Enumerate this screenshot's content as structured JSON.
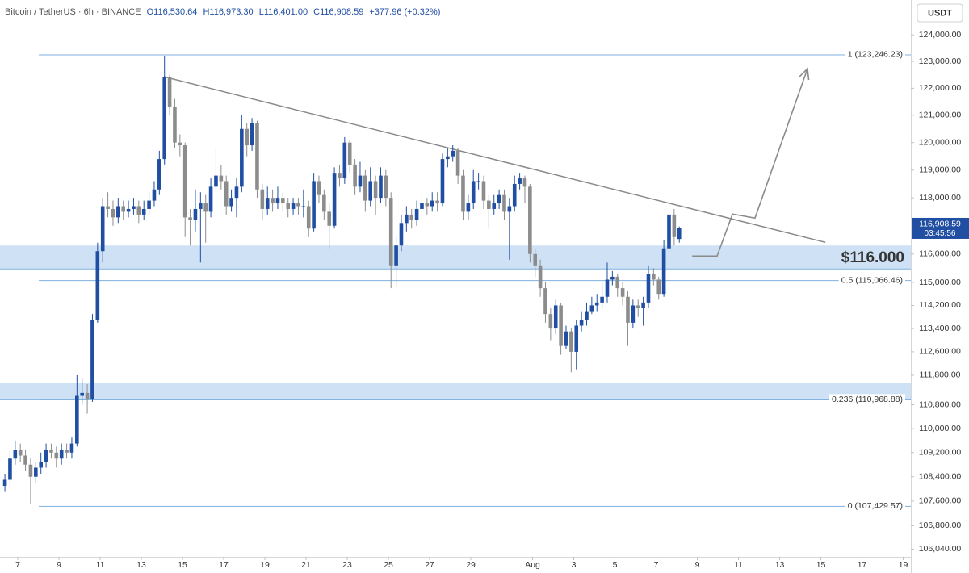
{
  "chart_data": {
    "type": "candlestick",
    "header": {
      "symbol": "Bitcoin / TetherUS · 6h · BINANCE",
      "open": "O116,530.64",
      "high": "H116,973.30",
      "low": "L116,401.00",
      "close": "C116,908.59",
      "change": "+377.96 (+0.32%)"
    },
    "currency": "USDT",
    "log_y": true,
    "up_color": "#1f4ea3",
    "down_color": "#8c8c8c",
    "xlim": [
      6.137,
      50.37
    ],
    "ylim": [
      105790,
      125320
    ],
    "xticks": [
      7,
      9,
      11,
      13,
      15,
      17,
      19,
      21,
      23,
      25,
      27,
      29,
      {
        "value": 32,
        "label": "Aug"
      },
      {
        "value": 34,
        "label": "3"
      },
      {
        "value": 36,
        "label": "5"
      },
      {
        "value": 38,
        "label": "7"
      },
      {
        "value": 40,
        "label": "9"
      },
      {
        "value": 42,
        "label": "11"
      },
      {
        "value": 44,
        "label": "13"
      },
      {
        "value": 46,
        "label": "15"
      },
      {
        "value": 48,
        "label": "17"
      },
      {
        "value": 50,
        "label": "19"
      }
    ],
    "yticks": [
      {
        "value": 124000,
        "label": "124,000.00"
      },
      {
        "value": 123000,
        "label": "123,000.00"
      },
      {
        "value": 122000,
        "label": "122,000.00"
      },
      {
        "value": 121000,
        "label": "121,000.00"
      },
      {
        "value": 120000,
        "label": "120,000.00"
      },
      {
        "value": 119000,
        "label": "119,000.00"
      },
      {
        "value": 118000,
        "label": "118,000.00"
      },
      {
        "value": 116000,
        "label": "116,000.00"
      },
      {
        "value": 115000,
        "label": "115,000.00"
      },
      {
        "value": 114200,
        "label": "114,200.00"
      },
      {
        "value": 113400,
        "label": "113,400.00"
      },
      {
        "value": 112600,
        "label": "112,600.00"
      },
      {
        "value": 111800,
        "label": "111,800.00"
      },
      {
        "value": 110800,
        "label": "110,800.00"
      },
      {
        "value": 110000,
        "label": "110,000.00"
      },
      {
        "value": 109200,
        "label": "109,200.00"
      },
      {
        "value": 108400,
        "label": "108,400.00"
      },
      {
        "value": 107600,
        "label": "107,600.00"
      },
      {
        "value": 106800,
        "label": "106,800.00"
      },
      {
        "value": 106040,
        "label": "106,040.00"
      }
    ],
    "x": [
      6.375,
      6.625,
      6.875,
      7.125,
      7.375,
      7.625,
      7.875,
      8.125,
      8.375,
      8.625,
      8.875,
      9.125,
      9.375,
      9.625,
      9.875,
      10.125,
      10.375,
      10.625,
      10.875,
      11.125,
      11.375,
      11.625,
      11.875,
      12.125,
      12.375,
      12.625,
      12.875,
      13.125,
      13.375,
      13.625,
      13.875,
      14.125,
      14.375,
      14.625,
      14.875,
      15.125,
      15.375,
      15.625,
      15.875,
      16.125,
      16.375,
      16.625,
      16.875,
      17.125,
      17.375,
      17.625,
      17.875,
      18.125,
      18.375,
      18.625,
      18.875,
      19.125,
      19.375,
      19.625,
      19.875,
      20.125,
      20.375,
      20.625,
      20.875,
      21.125,
      21.375,
      21.625,
      21.875,
      22.125,
      22.375,
      22.625,
      22.875,
      23.125,
      23.375,
      23.625,
      23.875,
      24.125,
      24.375,
      24.625,
      24.875,
      25.125,
      25.375,
      25.625,
      25.875,
      26.125,
      26.375,
      26.625,
      26.875,
      27.125,
      27.375,
      27.625,
      27.875,
      28.125,
      28.375,
      28.625,
      28.875,
      29.125,
      29.375,
      29.625,
      29.875,
      30.125,
      30.375,
      30.625,
      30.875,
      31.125,
      31.375,
      31.625,
      31.875,
      32.125,
      32.375,
      32.625,
      32.875,
      33.125,
      33.375,
      33.625,
      33.875,
      34.125,
      34.375,
      34.625,
      34.875,
      35.125,
      35.375,
      35.625,
      35.875,
      36.125,
      36.375,
      36.625,
      36.875,
      37.125,
      37.375,
      37.625,
      37.875,
      38.125,
      38.375,
      38.625,
      38.875,
      39.125
    ],
    "open": [
      108100,
      108300,
      109000,
      109300,
      109100,
      108800,
      108400,
      108700,
      108900,
      109300,
      109200,
      109000,
      109300,
      109200,
      109500,
      111100,
      111200,
      111000,
      113700,
      116100,
      117700,
      117600,
      117300,
      117700,
      117500,
      117600,
      117700,
      117400,
      117600,
      117900,
      118300,
      119400,
      122400,
      121300,
      120000,
      119900,
      117300,
      117200,
      117600,
      117800,
      117500,
      118400,
      118800,
      118600,
      117700,
      118000,
      118400,
      120500,
      119900,
      120700,
      118300,
      117600,
      118000,
      117800,
      118000,
      117800,
      117600,
      117800,
      117700,
      117700,
      116900,
      118600,
      118100,
      117500,
      117000,
      118900,
      118700,
      120000,
      119200,
      118400,
      118800,
      117900,
      118600,
      118000,
      118800,
      118000,
      115600,
      116300,
      117100,
      117400,
      117200,
      117600,
      117800,
      117700,
      117900,
      117800,
      119400,
      119500,
      119700,
      118800,
      117500,
      117800,
      118600,
      118600,
      117900,
      117600,
      117800,
      118100,
      117500,
      117700,
      118500,
      118700,
      118400,
      116000,
      115600,
      114800,
      113900,
      113400,
      114200,
      112800,
      113300,
      112600,
      113500,
      113700,
      114000,
      114200,
      114300,
      114500,
      115100,
      115200,
      114800,
      114500,
      113600,
      114200,
      114100,
      114300,
      115300,
      115100,
      114600,
      116200,
      117400,
      116530.64
    ],
    "high": [
      108500,
      109300,
      109600,
      109500,
      109300,
      109000,
      108900,
      109200,
      109500,
      109500,
      109400,
      109500,
      109500,
      109700,
      111800,
      111700,
      111500,
      113900,
      116400,
      118000,
      118200,
      117900,
      118000,
      117900,
      117900,
      118000,
      117900,
      117900,
      118200,
      118600,
      119700,
      123200,
      122500,
      121600,
      120300,
      120000,
      117600,
      118300,
      118200,
      118100,
      118700,
      119800,
      119200,
      118800,
      118300,
      118700,
      121000,
      120700,
      120900,
      120800,
      118500,
      118400,
      118300,
      118400,
      118200,
      118000,
      118000,
      118000,
      118300,
      117900,
      118900,
      118800,
      118300,
      117800,
      119100,
      119200,
      120200,
      120100,
      119400,
      119300,
      119000,
      119100,
      118800,
      119100,
      119000,
      118200,
      116600,
      117400,
      117700,
      117600,
      117900,
      118100,
      118000,
      118200,
      118200,
      119600,
      119800,
      119900,
      119800,
      119000,
      118100,
      119000,
      118900,
      118800,
      118100,
      118100,
      118300,
      118300,
      118000,
      118800,
      118900,
      118800,
      118500,
      116200,
      115800,
      115000,
      114100,
      114400,
      114300,
      113500,
      113400,
      113700,
      114000,
      114300,
      114500,
      114600,
      115000,
      115700,
      115400,
      115300,
      115000,
      114700,
      114400,
      114400,
      114500,
      115600,
      115500,
      115200,
      116500,
      117700,
      117600,
      116973.3
    ],
    "low": [
      107900,
      108100,
      108800,
      108900,
      108600,
      107500,
      108200,
      108500,
      108700,
      109000,
      108700,
      108800,
      109000,
      109000,
      109400,
      110800,
      110500,
      110900,
      113600,
      115700,
      117300,
      117000,
      117100,
      117200,
      117300,
      117400,
      117100,
      117200,
      117400,
      117700,
      118100,
      119200,
      121000,
      119800,
      119500,
      116600,
      116300,
      116800,
      115700,
      116400,
      117300,
      118200,
      118300,
      117400,
      117500,
      117300,
      118200,
      119500,
      119700,
      118000,
      117200,
      117400,
      117500,
      117600,
      117500,
      117300,
      117400,
      117400,
      117300,
      116600,
      116800,
      117800,
      117200,
      116200,
      116900,
      118400,
      118500,
      118900,
      118100,
      118200,
      117500,
      117700,
      117400,
      117800,
      117700,
      114800,
      114900,
      116100,
      116800,
      116900,
      117000,
      117400,
      117400,
      117500,
      117500,
      117700,
      119100,
      119300,
      118500,
      117200,
      117200,
      117600,
      118300,
      117600,
      116900,
      117400,
      117600,
      117200,
      115800,
      117500,
      118300,
      117800,
      115700,
      115200,
      114500,
      113600,
      113000,
      113200,
      112500,
      112700,
      111900,
      112000,
      113300,
      113500,
      113900,
      114000,
      114100,
      114300,
      114900,
      114500,
      114200,
      112800,
      113400,
      113800,
      113500,
      114100,
      114900,
      114400,
      114500,
      116000,
      116300,
      116401
    ],
    "close": [
      108300,
      109000,
      109300,
      109100,
      108800,
      108400,
      108700,
      108900,
      109300,
      109200,
      109000,
      109300,
      109200,
      109500,
      111100,
      111200,
      111000,
      113700,
      116100,
      117700,
      117600,
      117300,
      117700,
      117500,
      117600,
      117700,
      117400,
      117600,
      117900,
      118300,
      119400,
      122400,
      121300,
      120000,
      119900,
      117300,
      117200,
      117600,
      117800,
      117500,
      118400,
      118800,
      118600,
      117700,
      118000,
      118400,
      120500,
      119900,
      120700,
      118300,
      117600,
      118000,
      117800,
      118000,
      117800,
      117600,
      117800,
      117700,
      117700,
      116900,
      118600,
      118100,
      117500,
      117000,
      118900,
      118700,
      120000,
      119200,
      118400,
      118800,
      117900,
      118600,
      118000,
      118800,
      118000,
      115600,
      116300,
      117100,
      117400,
      117200,
      117600,
      117800,
      117700,
      117900,
      117800,
      119400,
      119500,
      119700,
      118800,
      117500,
      117800,
      118600,
      118600,
      117900,
      117600,
      117800,
      118100,
      117500,
      117700,
      118500,
      118700,
      118400,
      116000,
      115600,
      114800,
      113900,
      113400,
      114200,
      112800,
      113300,
      112600,
      113500,
      113700,
      114000,
      114200,
      114300,
      114500,
      115100,
      115200,
      114800,
      114500,
      113600,
      114200,
      114100,
      114300,
      115300,
      115100,
      114600,
      116200,
      117400,
      116600,
      116908.59
    ],
    "levels": [
      {
        "value": 123246.23,
        "label": "1 (123,246.23)"
      },
      {
        "value": 115066.46,
        "label": "0.5 (115,066.46)"
      },
      {
        "value": 110968.88,
        "label": "0.236 (110,968.88)"
      },
      {
        "value": 107429.57,
        "label": "0 (107,429.57)"
      }
    ],
    "level_color": "#7fb1df",
    "zones": [
      {
        "low": 115473,
        "high": 116300,
        "label": "$116.000"
      },
      {
        "low": 110968,
        "high": 111544
      }
    ],
    "zone_color": "#c7ddf3",
    "trendline": {
      "x": [
        14.1,
        46.22
      ],
      "y": [
        122426,
        116413
      ],
      "color": "#8a8a8a"
    },
    "projection": {
      "x": [
        39.75,
        40.96,
        41.71,
        42.8,
        45.35
      ],
      "y": [
        115929,
        115929,
        117418,
        117274,
        122727
      ],
      "color": "#8a8a8a"
    },
    "last_label": {
      "price": "116,908.59",
      "countdown": "03:45:56"
    }
  }
}
